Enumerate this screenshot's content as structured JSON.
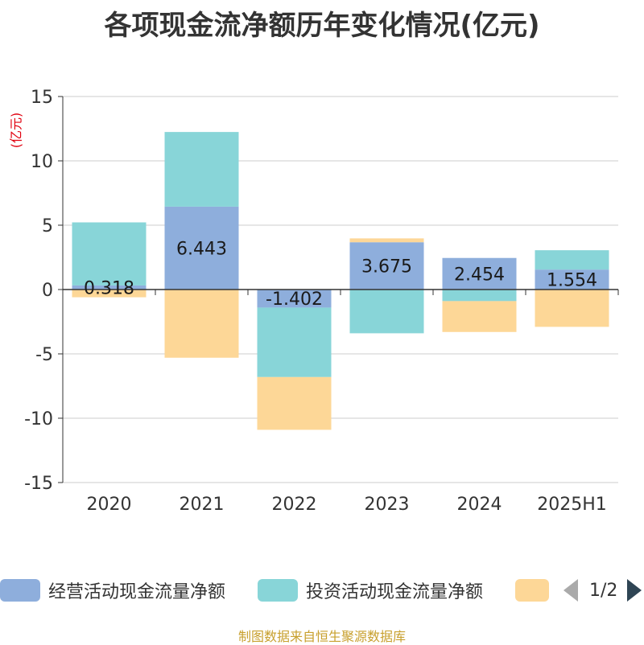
{
  "chart_data": {
    "type": "bar",
    "stacked": true,
    "title": "各项现金流净额历年变化情况(亿元)",
    "ylabel": "(亿元)",
    "ylim": [
      -15,
      15
    ],
    "yticks": [
      15,
      10,
      5,
      0,
      -5,
      -10,
      -15
    ],
    "ytick_labels": [
      "15",
      "10",
      "5",
      "0",
      "-5",
      "-10",
      "-15"
    ],
    "categories": [
      "2020",
      "2021",
      "2022",
      "2023",
      "2024",
      "2025H1"
    ],
    "grid": true,
    "legend_position": "bottom",
    "series": [
      {
        "name": "经营活动现金流量净额",
        "color": "#8eaedc",
        "values": [
          0.318,
          6.443,
          -1.402,
          3.675,
          2.454,
          1.554
        ]
      },
      {
        "name": "投资活动现金流量净额",
        "color": "#88d5d8",
        "values": [
          4.9,
          5.8,
          -5.4,
          -3.4,
          -0.9,
          1.5
        ]
      },
      {
        "name": "",
        "color": "#fdd797",
        "values": [
          -0.6,
          -5.3,
          -4.1,
          0.3,
          -2.4,
          -2.9
        ]
      }
    ],
    "data_labels": [
      "0.318",
      "6.443",
      "-1.402",
      "3.675",
      "2.454",
      "1.554"
    ]
  },
  "legend": {
    "items": [
      {
        "label": "经营活动现金流量净额",
        "color": "#8eaedc"
      },
      {
        "label": "投资活动现金流量净额",
        "color": "#88d5d8"
      },
      {
        "label": "",
        "color": "#fdd797"
      }
    ],
    "pager": "1/2"
  },
  "source": "制图数据来自恒生聚源数据库"
}
